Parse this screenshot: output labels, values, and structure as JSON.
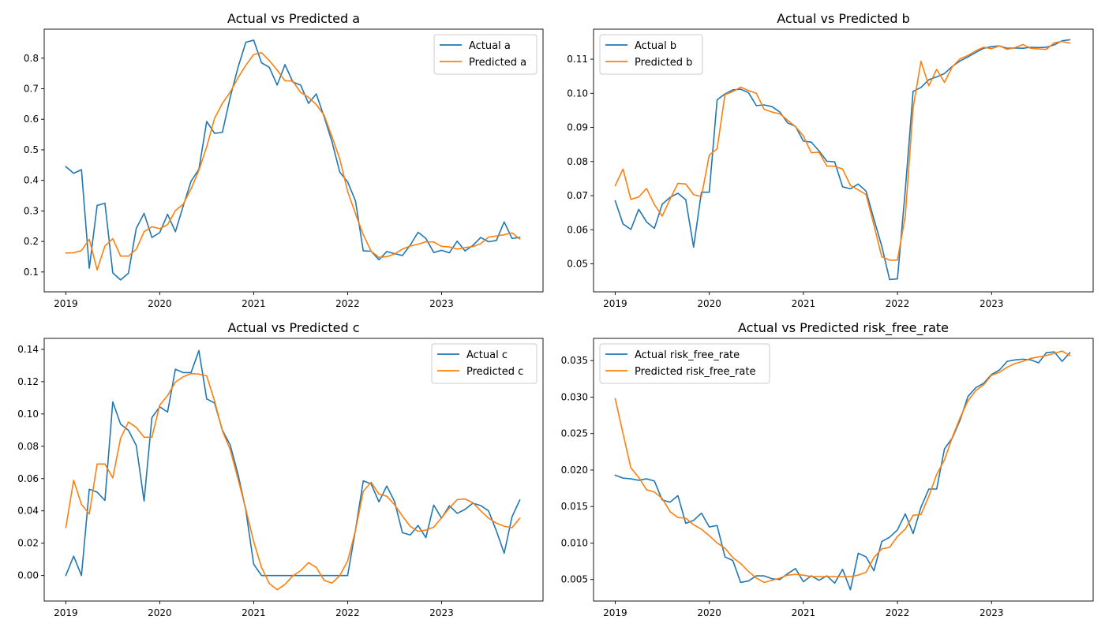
{
  "chart_data": [
    {
      "type": "line",
      "title": "Actual vs Predicted a",
      "xlabel": "",
      "ylabel": "",
      "xlim": [
        2018.77,
        2024.08
      ],
      "ylim": [
        0.035,
        0.895
      ],
      "xticks": [
        2019,
        2020,
        2021,
        2022,
        2023
      ],
      "xtick_labels": [
        "2019",
        "2020",
        "2021",
        "2022",
        "2023"
      ],
      "yticks": [
        0.1,
        0.2,
        0.3,
        0.4,
        0.5,
        0.6,
        0.7,
        0.8
      ],
      "ytick_labels": [
        "0.1",
        "0.2",
        "0.3",
        "0.4",
        "0.5",
        "0.6",
        "0.7",
        "0.8"
      ],
      "legend_position": "top-right",
      "grid": false,
      "x_start": 2019,
      "x_step": 0.08333,
      "series": [
        {
          "name": "Actual a",
          "color": "#1f77b4",
          "values": [
            0.445,
            0.423,
            0.435,
            0.112,
            0.318,
            0.325,
            0.097,
            0.074,
            0.096,
            0.243,
            0.292,
            0.213,
            0.229,
            0.289,
            0.232,
            0.316,
            0.397,
            0.436,
            0.593,
            0.554,
            0.557,
            0.672,
            0.77,
            0.852,
            0.859,
            0.785,
            0.77,
            0.712,
            0.779,
            0.722,
            0.712,
            0.652,
            0.683,
            0.608,
            0.527,
            0.427,
            0.395,
            0.333,
            0.169,
            0.168,
            0.14,
            0.167,
            0.16,
            0.154,
            0.188,
            0.23,
            0.21,
            0.164,
            0.171,
            0.163,
            0.201,
            0.169,
            0.187,
            0.213,
            0.199,
            0.203,
            0.264,
            0.21,
            0.213
          ]
        },
        {
          "name": "Predicted a",
          "color": "#ff7f0e",
          "values": [
            0.162,
            0.163,
            0.17,
            0.207,
            0.107,
            0.185,
            0.209,
            0.152,
            0.152,
            0.174,
            0.232,
            0.248,
            0.242,
            0.255,
            0.301,
            0.322,
            0.372,
            0.433,
            0.51,
            0.603,
            0.652,
            0.689,
            0.736,
            0.777,
            0.812,
            0.818,
            0.792,
            0.761,
            0.726,
            0.725,
            0.688,
            0.672,
            0.648,
            0.613,
            0.543,
            0.47,
            0.364,
            0.291,
            0.222,
            0.168,
            0.148,
            0.15,
            0.159,
            0.175,
            0.185,
            0.191,
            0.199,
            0.198,
            0.184,
            0.182,
            0.175,
            0.18,
            0.183,
            0.193,
            0.214,
            0.218,
            0.222,
            0.228,
            0.208
          ]
        }
      ]
    },
    {
      "type": "line",
      "title": "Actual vs Predicted b",
      "xlabel": "",
      "ylabel": "",
      "xlim": [
        2018.77,
        2024.08
      ],
      "ylim": [
        0.0418,
        0.1188
      ],
      "xticks": [
        2019,
        2020,
        2021,
        2022,
        2023
      ],
      "xtick_labels": [
        "2019",
        "2020",
        "2021",
        "2022",
        "2023"
      ],
      "yticks": [
        0.05,
        0.06,
        0.07,
        0.08,
        0.09,
        0.1,
        0.11
      ],
      "ytick_labels": [
        "0.05",
        "0.06",
        "0.07",
        "0.08",
        "0.09",
        "0.10",
        "0.11"
      ],
      "legend_position": "top-left",
      "grid": false,
      "x_start": 2019,
      "x_step": 0.08333,
      "series": [
        {
          "name": "Actual b",
          "color": "#1f77b4",
          "values": [
            0.0685,
            0.0617,
            0.0601,
            0.066,
            0.0623,
            0.0604,
            0.0675,
            0.0695,
            0.0707,
            0.0688,
            0.0549,
            0.071,
            0.071,
            0.0981,
            0.0998,
            0.101,
            0.1012,
            0.1002,
            0.0964,
            0.0966,
            0.0961,
            0.0945,
            0.0913,
            0.0903,
            0.086,
            0.0857,
            0.0831,
            0.0801,
            0.0799,
            0.0726,
            0.072,
            0.0734,
            0.0713,
            0.0631,
            0.0552,
            0.0454,
            0.0456,
            0.0716,
            0.1006,
            0.1017,
            0.104,
            0.1048,
            0.1058,
            0.1079,
            0.1095,
            0.1107,
            0.112,
            0.1132,
            0.1137,
            0.1139,
            0.1132,
            0.1133,
            0.1132,
            0.1135,
            0.1134,
            0.1135,
            0.1142,
            0.1154,
            0.1157
          ]
        },
        {
          "name": "Predicted b",
          "color": "#ff7f0e",
          "values": [
            0.0729,
            0.0778,
            0.0689,
            0.0696,
            0.0721,
            0.0674,
            0.064,
            0.069,
            0.0736,
            0.0734,
            0.0703,
            0.0697,
            0.0819,
            0.0837,
            0.0996,
            0.1005,
            0.1018,
            0.1008,
            0.1,
            0.0953,
            0.0945,
            0.094,
            0.0921,
            0.0902,
            0.0875,
            0.0826,
            0.0827,
            0.0787,
            0.0786,
            0.0778,
            0.073,
            0.0717,
            0.0703,
            0.0614,
            0.0521,
            0.0511,
            0.0511,
            0.064,
            0.0957,
            0.1094,
            0.1022,
            0.107,
            0.1032,
            0.1078,
            0.1101,
            0.1111,
            0.1125,
            0.1135,
            0.1131,
            0.1139,
            0.1129,
            0.1134,
            0.1143,
            0.1132,
            0.113,
            0.1129,
            0.1148,
            0.1152,
            0.1147
          ]
        }
      ]
    },
    {
      "type": "line",
      "title": "Actual vs Predicted c",
      "xlabel": "",
      "ylabel": "",
      "xlim": [
        2018.77,
        2024.08
      ],
      "ylim": [
        -0.0158,
        0.1468
      ],
      "xticks": [
        2019,
        2020,
        2021,
        2022,
        2023
      ],
      "xtick_labels": [
        "2019",
        "2020",
        "2021",
        "2022",
        "2023"
      ],
      "yticks": [
        0.0,
        0.02,
        0.04,
        0.06,
        0.08,
        0.1,
        0.12,
        0.14
      ],
      "ytick_labels": [
        "0.00",
        "0.02",
        "0.04",
        "0.06",
        "0.08",
        "0.10",
        "0.12",
        "0.14"
      ],
      "legend_position": "top-right",
      "grid": false,
      "x_start": 2019,
      "x_step": 0.08333,
      "series": [
        {
          "name": "Actual c",
          "color": "#1f77b4",
          "values": [
            0.0,
            0.012,
            0.0,
            0.0534,
            0.0516,
            0.0465,
            0.1075,
            0.0937,
            0.0899,
            0.0805,
            0.0461,
            0.0978,
            0.1044,
            0.1012,
            0.1277,
            0.1256,
            0.1256,
            0.1392,
            0.1093,
            0.1068,
            0.09,
            0.0808,
            0.0627,
            0.0403,
            0.007,
            0.0,
            0.0,
            0.0,
            0.0,
            0.0,
            0.0,
            0.0,
            0.0,
            0.0,
            0.0,
            0.0,
            0.0,
            0.028,
            0.0586,
            0.0567,
            0.0456,
            0.0554,
            0.0458,
            0.0265,
            0.0251,
            0.031,
            0.0234,
            0.0436,
            0.0355,
            0.0432,
            0.0385,
            0.0409,
            0.0448,
            0.0433,
            0.04,
            0.0277,
            0.0138,
            0.0363,
            0.0468
          ]
        },
        {
          "name": "Predicted c",
          "color": "#ff7f0e",
          "values": [
            0.0296,
            0.059,
            0.044,
            0.0381,
            0.069,
            0.069,
            0.0604,
            0.085,
            0.095,
            0.0917,
            0.0856,
            0.0856,
            0.1055,
            0.1114,
            0.1197,
            0.123,
            0.125,
            0.1247,
            0.1236,
            0.1081,
            0.0896,
            0.0779,
            0.0598,
            0.041,
            0.021,
            0.005,
            -0.005,
            -0.0088,
            -0.0055,
            -0.0002,
            0.003,
            0.008,
            0.005,
            -0.003,
            -0.0047,
            0.0,
            0.009,
            0.0278,
            0.0522,
            0.0577,
            0.0504,
            0.0491,
            0.0438,
            0.0368,
            0.0304,
            0.0273,
            0.0281,
            0.0299,
            0.0358,
            0.0418,
            0.047,
            0.0474,
            0.045,
            0.04,
            0.0355,
            0.0324,
            0.0305,
            0.0296,
            0.0355
          ]
        }
      ]
    },
    {
      "type": "line",
      "title": "Actual vs Predicted risk_free_rate",
      "xlabel": "",
      "ylabel": "",
      "xlim": [
        2018.77,
        2024.08
      ],
      "ylim": [
        0.00205,
        0.03805
      ],
      "xticks": [
        2019,
        2020,
        2021,
        2022,
        2023
      ],
      "xtick_labels": [
        "2019",
        "2020",
        "2021",
        "2022",
        "2023"
      ],
      "yticks": [
        0.005,
        0.01,
        0.015,
        0.02,
        0.025,
        0.03,
        0.035
      ],
      "ytick_labels": [
        "0.005",
        "0.010",
        "0.015",
        "0.020",
        "0.025",
        "0.030",
        "0.035"
      ],
      "legend_position": "top-left",
      "grid": false,
      "x_start": 2019,
      "x_step": 0.08333,
      "series": [
        {
          "name": "Actual risk_free_rate",
          "color": "#1f77b4",
          "values": [
            0.0193,
            0.0189,
            0.0188,
            0.0186,
            0.0188,
            0.0185,
            0.0159,
            0.0156,
            0.0165,
            0.0127,
            0.0131,
            0.0141,
            0.0122,
            0.0124,
            0.0081,
            0.0076,
            0.0046,
            0.0048,
            0.0055,
            0.0055,
            0.0051,
            0.005,
            0.0058,
            0.0065,
            0.0047,
            0.0055,
            0.0049,
            0.0055,
            0.0045,
            0.0064,
            0.0036,
            0.0086,
            0.0081,
            0.0062,
            0.0102,
            0.0108,
            0.0118,
            0.014,
            0.0113,
            0.0149,
            0.0174,
            0.0174,
            0.0229,
            0.0244,
            0.0269,
            0.0301,
            0.0313,
            0.0319,
            0.0331,
            0.0337,
            0.0349,
            0.0351,
            0.0352,
            0.0351,
            0.0347,
            0.0361,
            0.0362,
            0.0349,
            0.0361
          ]
        },
        {
          "name": "Predicted risk_free_rate",
          "color": "#ff7f0e",
          "values": [
            0.0298,
            0.025,
            0.0203,
            0.019,
            0.0173,
            0.017,
            0.0161,
            0.0143,
            0.0135,
            0.0134,
            0.0125,
            0.0119,
            0.011,
            0.01,
            0.0093,
            0.008,
            0.0072,
            0.0061,
            0.0052,
            0.0046,
            0.0049,
            0.0052,
            0.0056,
            0.0057,
            0.0056,
            0.0054,
            0.0054,
            0.0054,
            0.0054,
            0.0054,
            0.0054,
            0.0056,
            0.006,
            0.008,
            0.0092,
            0.0094,
            0.0109,
            0.0119,
            0.0138,
            0.0139,
            0.0164,
            0.0194,
            0.0214,
            0.0245,
            0.0272,
            0.0295,
            0.0309,
            0.0317,
            0.033,
            0.0334,
            0.0341,
            0.0346,
            0.0349,
            0.0353,
            0.0355,
            0.0357,
            0.036,
            0.0363,
            0.0357
          ]
        }
      ]
    }
  ]
}
